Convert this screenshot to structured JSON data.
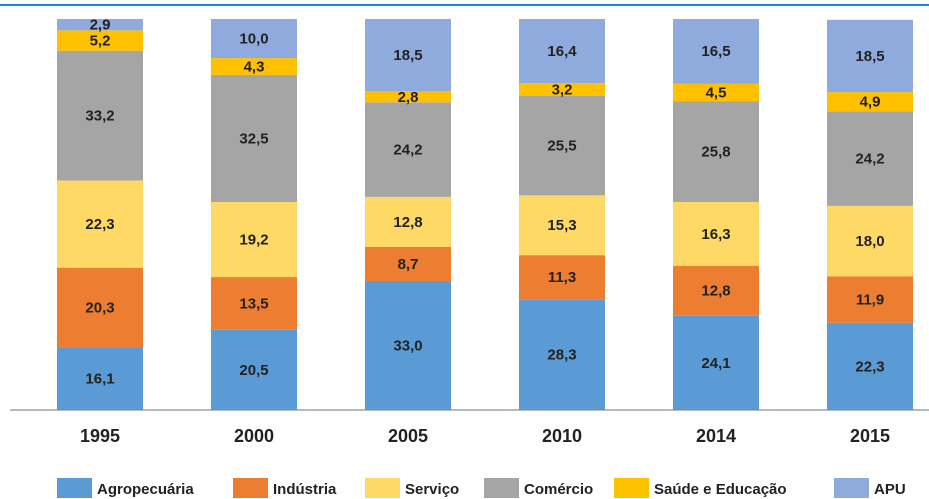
{
  "chart_data": {
    "type": "stacked_bar",
    "categories": [
      "1995",
      "2000",
      "2005",
      "2010",
      "2014",
      "2015"
    ],
    "ylim": [
      0,
      100
    ],
    "series": [
      {
        "name": "Agropecuária",
        "color": "#5b9bd5",
        "values": [
          16.1,
          20.5,
          33.0,
          28.3,
          24.1,
          22.3
        ],
        "value_labels": [
          "16,1",
          "20,5",
          "33,0",
          "28,3",
          "24,1",
          "22,3"
        ]
      },
      {
        "name": "Indústria",
        "color": "#ed7d31",
        "values": [
          20.3,
          13.5,
          8.7,
          11.3,
          12.8,
          11.9
        ],
        "value_labels": [
          "20,3",
          "13,5",
          "8,7",
          "11,3",
          "12,8",
          "11,9"
        ]
      },
      {
        "name": "Serviço",
        "color": "#ffd966",
        "values": [
          22.3,
          19.2,
          12.8,
          15.3,
          16.3,
          18.0
        ],
        "value_labels": [
          "22,3",
          "19,2",
          "12,8",
          "15,3",
          "16,3",
          "18,0"
        ]
      },
      {
        "name": "Comércio",
        "color": "#a5a5a5",
        "values": [
          33.2,
          32.5,
          24.2,
          25.5,
          25.8,
          24.2
        ],
        "value_labels": [
          "33,2",
          "32,5",
          "24,2",
          "25,5",
          "25,8",
          "24,2"
        ]
      },
      {
        "name": "Saúde e Educação",
        "color": "#ffc000",
        "values": [
          5.2,
          4.3,
          2.8,
          3.2,
          4.5,
          4.9
        ],
        "value_labels": [
          "5,2",
          "4,3",
          "2,8",
          "3,2",
          "4,5",
          "4,9"
        ]
      },
      {
        "name": "APU",
        "color": "#8faadc",
        "values": [
          2.9,
          10.0,
          18.5,
          16.4,
          16.5,
          18.5
        ],
        "value_labels": [
          "2,9",
          "10,0",
          "18,5",
          "16,4",
          "16,5",
          "18,5"
        ]
      }
    ]
  }
}
